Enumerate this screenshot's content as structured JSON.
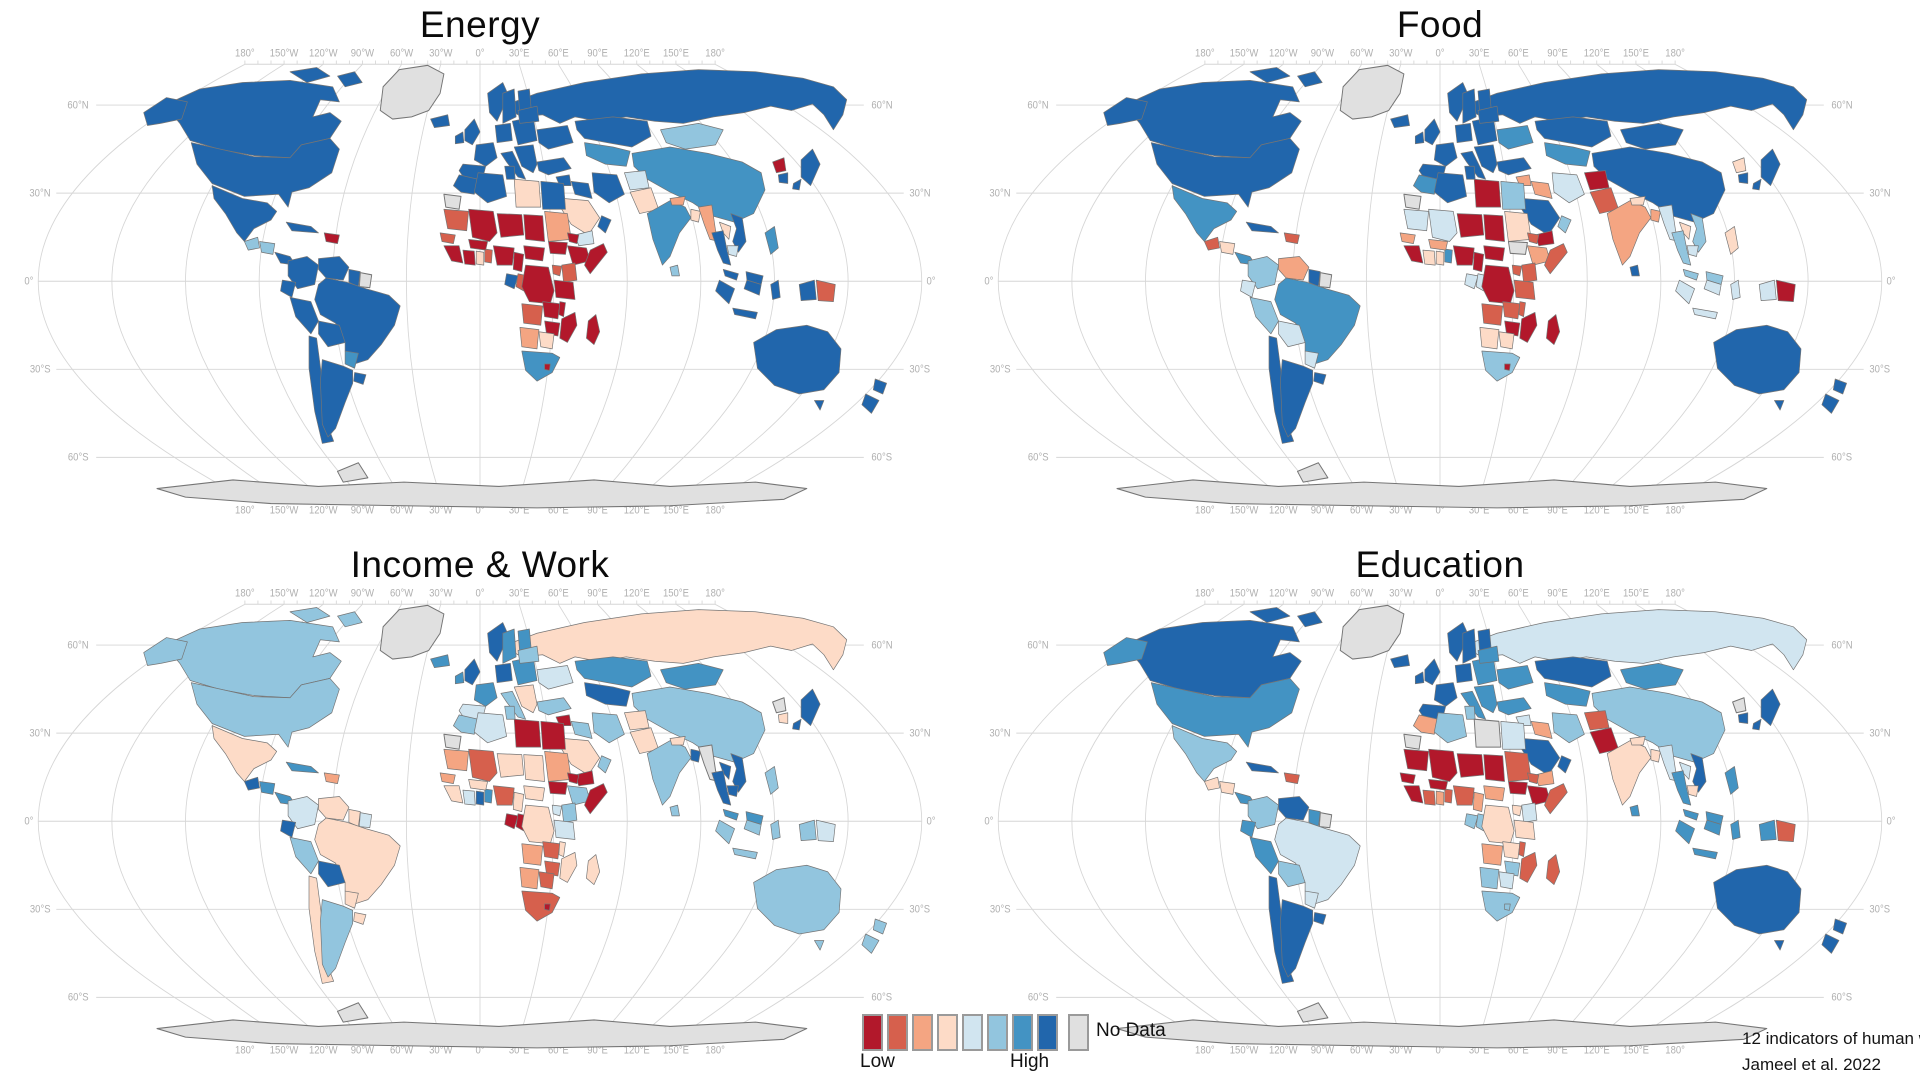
{
  "panels": [
    {
      "id": "energy",
      "title": "Energy",
      "fills": {
        "greenland": "nd",
        "canada": "b4",
        "alaska": "b4",
        "usa": "b4",
        "mexico": "b4",
        "guatemala": "b2",
        "honduras": "b2",
        "panama": "b4",
        "cuba": "b4",
        "haiti": "r4",
        "colombia": "b4",
        "venezuela": "b4",
        "guyana": "b4",
        "suriname": "nd",
        "ecuador": "b4",
        "peru": "b4",
        "bolivia": "b4",
        "brazil": "b4",
        "paraguay": "b3",
        "uruguay": "b4",
        "chile": "b4",
        "argentina": "b4",
        "iceland": "b4",
        "uk": "b4",
        "ireland": "b4",
        "norway": "b4",
        "sweden": "b4",
        "finland": "b4",
        "germany": "b4",
        "france": "b4",
        "spain": "b4",
        "italy": "b4",
        "east_europe": "b4",
        "balkans": "b4",
        "ukraine": "b4",
        "belarus": "b4",
        "russia": "b4",
        "kazakhstan": "b4",
        "central_asia": "b3",
        "mongolia": "b2",
        "china": "b3",
        "japan": "b4",
        "n_korea": "r4",
        "s_korea": "b4",
        "turkey": "b4",
        "syria": "b4",
        "iraq": "b4",
        "iran": "b4",
        "saudi": "r1",
        "yemen": "b1",
        "oman": "b4",
        "afghanistan": "b1",
        "pakistan": "r1",
        "india": "b3",
        "nepal": "r2",
        "bangladesh": "r1",
        "sri_lanka": "b2",
        "myanmar": "r2",
        "thailand": "b4",
        "laos": "r1",
        "vietnam": "b4",
        "cambodia": "b1",
        "malaysia": "b4",
        "indonesia": "b4",
        "png": "r3",
        "philippines": "b3",
        "australia": "b4",
        "nz": "b4",
        "morocco": "b4",
        "w_sahara": "nd",
        "algeria": "b4",
        "tunisia": "b4",
        "libya": "r1",
        "egypt": "b4",
        "mauritania": "r3",
        "mali": "r4",
        "niger": "r4",
        "chad": "r4",
        "sudan": "r2",
        "s_sudan": "r4",
        "eritrea": "r4",
        "ethiopia": "r4",
        "somalia": "r4",
        "senegal": "r3",
        "guinea_coast": "r4",
        "ivory_coast": "r4",
        "ghana": "r1",
        "togo_benin": "r3",
        "burkina": "r4",
        "nigeria": "r4",
        "cameroon": "r4",
        "car": "r4",
        "gabon": "b4",
        "congo": "r3",
        "drc": "r4",
        "uganda": "r3",
        "kenya": "r3",
        "tanzania": "r4",
        "angola": "r3",
        "zambia": "r4",
        "malawi": "r4",
        "zimbabwe": "r4",
        "mozambique": "r4",
        "namibia": "r2",
        "botswana": "r1",
        "s_africa": "b3",
        "lesotho": "r4",
        "madagascar": "r4",
        "antarctica": "nd"
      }
    },
    {
      "id": "food",
      "title": "Food",
      "fills": {
        "greenland": "nd",
        "canada": "b4",
        "alaska": "b4",
        "usa": "b4",
        "mexico": "b3",
        "guatemala": "r3",
        "honduras": "r1",
        "panama": "b3",
        "cuba": "b4",
        "haiti": "r3",
        "colombia": "b2",
        "venezuela": "r2",
        "guyana": "b4",
        "suriname": "nd",
        "ecuador": "b1",
        "peru": "b2",
        "bolivia": "b1",
        "brazil": "b3",
        "paraguay": "b1",
        "uruguay": "b4",
        "chile": "b4",
        "argentina": "b4",
        "iceland": "b4",
        "uk": "b4",
        "ireland": "b4",
        "norway": "b4",
        "sweden": "b4",
        "finland": "b4",
        "germany": "b4",
        "france": "b4",
        "spain": "b4",
        "italy": "b4",
        "east_europe": "b4",
        "balkans": "b4",
        "ukraine": "b3",
        "belarus": "b4",
        "russia": "b4",
        "kazakhstan": "b4",
        "central_asia": "b3",
        "mongolia": "b4",
        "china": "b4",
        "japan": "b4",
        "n_korea": "r1",
        "s_korea": "b4",
        "turkey": "b4",
        "syria": "r2",
        "iraq": "r2",
        "iran": "b1",
        "saudi": "b4",
        "yemen": "r4",
        "oman": "b2",
        "afghanistan": "r4",
        "pakistan": "r3",
        "india": "r2",
        "nepal": "r1",
        "bangladesh": "r2",
        "sri_lanka": "b4",
        "myanmar": "b1",
        "thailand": "b2",
        "laos": "r1",
        "vietnam": "b2",
        "cambodia": "b1",
        "malaysia": "b2",
        "indonesia": "b1",
        "png": "r4",
        "philippines": "r1",
        "australia": "b4",
        "nz": "b4",
        "morocco": "b3",
        "w_sahara": "nd",
        "algeria": "b4",
        "tunisia": "b4",
        "libya": "r4",
        "egypt": "b2",
        "mauritania": "b1",
        "mali": "b1",
        "niger": "r4",
        "chad": "r4",
        "sudan": "r1",
        "s_sudan": "nd",
        "eritrea": "r3",
        "ethiopia": "r2",
        "somalia": "r3",
        "senegal": "r2",
        "guinea_coast": "r4",
        "ivory_coast": "r1",
        "ghana": "r1",
        "togo_benin": "b3",
        "burkina": "r2",
        "nigeria": "r4",
        "cameroon": "r4",
        "car": "r4",
        "gabon": "b1",
        "congo": "b1",
        "drc": "r4",
        "uganda": "r3",
        "kenya": "r3",
        "tanzania": "r3",
        "angola": "r3",
        "zambia": "r3",
        "malawi": "r3",
        "zimbabwe": "r4",
        "mozambique": "r4",
        "namibia": "r1",
        "botswana": "r1",
        "s_africa": "b2",
        "lesotho": "r4",
        "madagascar": "r4",
        "antarctica": "nd"
      }
    },
    {
      "id": "income",
      "title": "Income & Work",
      "fills": {
        "greenland": "nd",
        "canada": "b2",
        "alaska": "b2",
        "usa": "b2",
        "mexico": "r1",
        "guatemala": "b4",
        "honduras": "b3",
        "panama": "b3",
        "cuba": "b3",
        "haiti": "r2",
        "colombia": "b1",
        "venezuela": "r1",
        "guyana": "r1",
        "suriname": "b1",
        "ecuador": "b4",
        "peru": "b2",
        "bolivia": "b4",
        "brazil": "r1",
        "paraguay": "r1",
        "uruguay": "r1",
        "chile": "r1",
        "argentina": "b2",
        "iceland": "b3",
        "uk": "b4",
        "ireland": "b3",
        "norway": "b4",
        "sweden": "b3",
        "finland": "b3",
        "germany": "b4",
        "france": "b3",
        "spain": "b1",
        "italy": "b2",
        "east_europe": "b3",
        "balkans": "r1",
        "ukraine": "b1",
        "belarus": "b2",
        "russia": "r1",
        "kazakhstan": "b3",
        "central_asia": "b4",
        "mongolia": "b3",
        "china": "b2",
        "japan": "b4",
        "n_korea": "nd",
        "s_korea": "r1",
        "turkey": "b2",
        "syria": "r4",
        "iraq": "b2",
        "iran": "b2",
        "saudi": "r1",
        "yemen": "r4",
        "oman": "b2",
        "afghanistan": "r1",
        "pakistan": "r1",
        "india": "b2",
        "nepal": "r1",
        "bangladesh": "b4",
        "sri_lanka": "b2",
        "myanmar": "nd",
        "thailand": "b4",
        "laos": "b4",
        "vietnam": "b4",
        "cambodia": "b4",
        "malaysia": "b3",
        "indonesia": "b2",
        "png": "b1",
        "philippines": "b2",
        "australia": "b2",
        "nz": "b2",
        "morocco": "b2",
        "w_sahara": "nd",
        "algeria": "b1",
        "tunisia": "b2",
        "libya": "r4",
        "egypt": "r4",
        "mauritania": "r2",
        "mali": "r3",
        "niger": "r1",
        "chad": "r1",
        "sudan": "r2",
        "s_sudan": "r4",
        "eritrea": "r4",
        "ethiopia": "b2",
        "somalia": "r4",
        "senegal": "r2",
        "guinea_coast": "r1",
        "ivory_coast": "b1",
        "ghana": "b4",
        "togo_benin": "b3",
        "burkina": "r1",
        "nigeria": "r3",
        "cameroon": "r1",
        "car": "r1",
        "gabon": "r4",
        "congo": "r4",
        "drc": "r1",
        "uganda": "b1",
        "kenya": "b2",
        "tanzania": "b1",
        "angola": "r2",
        "zambia": "r3",
        "malawi": "r1",
        "zimbabwe": "r3",
        "mozambique": "r1",
        "namibia": "r2",
        "botswana": "r3",
        "s_africa": "r3",
        "lesotho": "r4",
        "madagascar": "r1",
        "antarctica": "nd"
      }
    },
    {
      "id": "education",
      "title": "Education",
      "fills": {
        "greenland": "nd",
        "canada": "b4",
        "alaska": "b3",
        "usa": "b3",
        "mexico": "b2",
        "guatemala": "r1",
        "honduras": "r1",
        "panama": "b3",
        "cuba": "b4",
        "haiti": "r3",
        "colombia": "b2",
        "venezuela": "b4",
        "guyana": "b3",
        "suriname": "nd",
        "ecuador": "b3",
        "peru": "b3",
        "bolivia": "b2",
        "brazil": "b1",
        "paraguay": "b1",
        "uruguay": "b4",
        "chile": "b4",
        "argentina": "b4",
        "iceland": "b4",
        "uk": "b4",
        "ireland": "b4",
        "norway": "b4",
        "sweden": "b4",
        "finland": "b4",
        "germany": "b4",
        "france": "b4",
        "spain": "b4",
        "italy": "b3",
        "east_europe": "b3",
        "balkans": "b3",
        "ukraine": "b3",
        "belarus": "b3",
        "russia": "b1",
        "kazakhstan": "b4",
        "central_asia": "b3",
        "mongolia": "b3",
        "china": "b2",
        "japan": "b4",
        "n_korea": "nd",
        "s_korea": "b4",
        "turkey": "b3",
        "syria": "b1",
        "iraq": "r2",
        "iran": "b2",
        "saudi": "b4",
        "yemen": "r2",
        "oman": "b4",
        "afghanistan": "r3",
        "pakistan": "r4",
        "india": "r1",
        "nepal": "r1",
        "bangladesh": "r1",
        "sri_lanka": "b3",
        "myanmar": "b1",
        "thailand": "b3",
        "laos": "b1",
        "vietnam": "b4",
        "cambodia": "r1",
        "malaysia": "b3",
        "indonesia": "b3",
        "png": "r3",
        "philippines": "b3",
        "australia": "b4",
        "nz": "b4",
        "morocco": "r2",
        "w_sahara": "nd",
        "algeria": "b2",
        "tunisia": "b2",
        "libya": "nd",
        "egypt": "b1",
        "mauritania": "r4",
        "mali": "r4",
        "niger": "r4",
        "chad": "r4",
        "sudan": "r3",
        "s_sudan": "r4",
        "eritrea": "r3",
        "ethiopia": "r4",
        "somalia": "r3",
        "senegal": "r4",
        "guinea_coast": "r4",
        "ivory_coast": "r3",
        "ghana": "r2",
        "togo_benin": "r3",
        "burkina": "r4",
        "nigeria": "r3",
        "cameroon": "r2",
        "car": "r2",
        "gabon": "b2",
        "congo": "b2",
        "drc": "r1",
        "uganda": "r1",
        "kenya": "b1",
        "tanzania": "r1",
        "angola": "r2",
        "zambia": "r1",
        "malawi": "r3",
        "zimbabwe": "b2",
        "mozambique": "r3",
        "namibia": "b2",
        "botswana": "b1",
        "s_africa": "b2",
        "lesotho": "b2",
        "madagascar": "r3",
        "antarctica": "nd"
      }
    }
  ],
  "palette": {
    "r4": "#b2182b",
    "r3": "#d6604d",
    "r2": "#f4a582",
    "r1": "#fddbc7",
    "b1": "#d1e5f0",
    "b2": "#92c5de",
    "b3": "#4393c3",
    "b4": "#2166ac",
    "nd": "#e0e0e0",
    "ocean": "#ffffff",
    "border": "#757575",
    "graticule": "#d6d6d6",
    "axis_text": "#b0b0b0"
  },
  "legend": {
    "low_label": "Low",
    "high_label": "High",
    "no_data_label": "No Data",
    "classes": [
      "r4",
      "r3",
      "r2",
      "r1",
      "b1",
      "b2",
      "b3",
      "b4"
    ]
  },
  "axes": {
    "lon_labels": [
      "180°",
      "150°W",
      "120°W",
      "90°W",
      "60°W",
      "30°W",
      "0°",
      "30°E",
      "60°E",
      "90°E",
      "120°E",
      "150°E",
      "180°"
    ],
    "lat_labels": [
      "60°N",
      "30°N",
      "0°",
      "30°S",
      "60°S"
    ]
  },
  "credit": {
    "line1": "12 indicators of human w",
    "line2": "Jameel et al. 2022"
  }
}
